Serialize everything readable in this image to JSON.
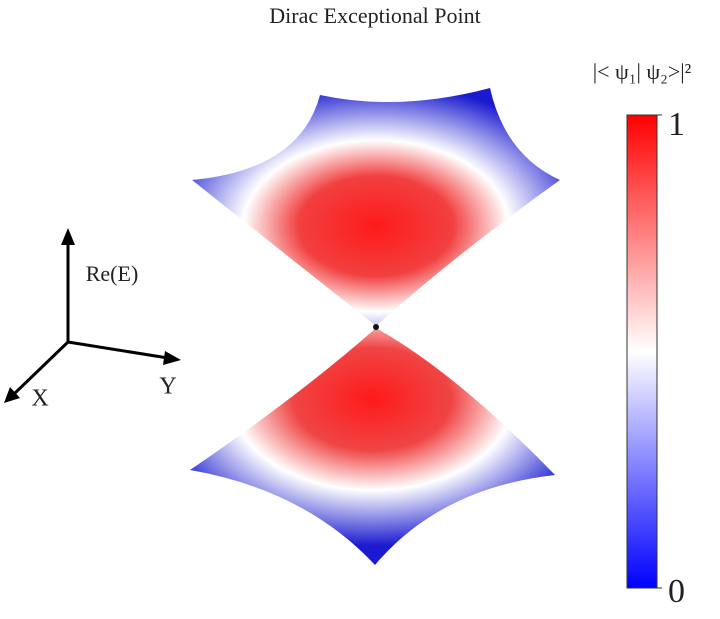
{
  "chart_data": {
    "type": "surface",
    "title": "Dirac Exceptional Point",
    "axis_labels": {
      "x": "X",
      "y": "Y",
      "z": "Re(E)"
    },
    "colorbar": {
      "label": "|< ψ₁| ψ₂>|²",
      "lim": [
        0,
        1
      ],
      "ticks": [
        0,
        1
      ],
      "colors": [
        "#0000ff",
        "#ffffff",
        "#ff0000"
      ]
    }
  }
}
